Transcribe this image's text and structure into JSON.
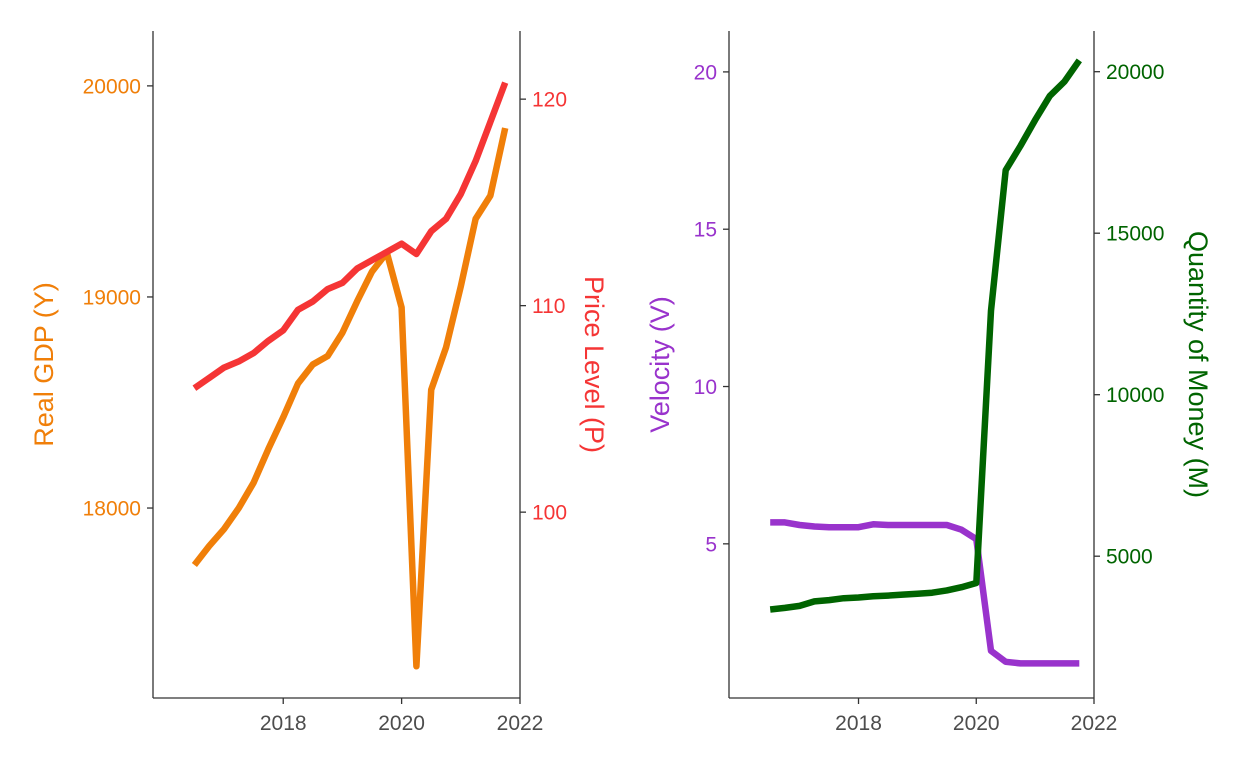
{
  "chart_data": [
    {
      "type": "line",
      "dual_axis": true,
      "grid": false,
      "legend": "none",
      "x": [
        2016.5,
        2016.75,
        2017.0,
        2017.25,
        2017.5,
        2017.75,
        2018.0,
        2018.25,
        2018.5,
        2018.75,
        2019.0,
        2019.25,
        2019.5,
        2019.75,
        2020.0,
        2020.25,
        2020.5,
        2020.75,
        2021.0,
        2021.25,
        2021.5,
        2021.75
      ],
      "xlim": [
        2015.8,
        2022.0
      ],
      "x_ticks": [
        "2018",
        "2020",
        "2022"
      ],
      "series": [
        {
          "axis": "left",
          "color": "#F07F09",
          "values": [
            17730,
            17820,
            17900,
            18000,
            18120,
            18280,
            18430,
            18590,
            18680,
            18720,
            18830,
            18980,
            19120,
            19210,
            18950,
            17250,
            18560,
            18760,
            19050,
            19370,
            19480,
            19800
          ]
        },
        {
          "axis": "right",
          "color": "#F53535",
          "values": [
            106.0,
            106.5,
            107.0,
            107.3,
            107.7,
            108.3,
            108.8,
            109.8,
            110.2,
            110.8,
            111.1,
            111.8,
            112.2,
            112.6,
            113.0,
            112.5,
            113.6,
            114.2,
            115.4,
            117.0,
            118.9,
            120.8
          ]
        }
      ],
      "left_axis": {
        "label": "Real GDP (Y)",
        "color": "#F07F09",
        "ylim": [
          17100,
          20260
        ],
        "ticks": [
          "18000",
          "19000",
          "20000"
        ]
      },
      "right_axis": {
        "label": "Price Level (P)",
        "color": "#F53535",
        "ylim": [
          91.0,
          123.3
        ],
        "ticks": [
          "100",
          "110",
          "120"
        ]
      }
    },
    {
      "type": "line",
      "dual_axis": true,
      "grid": false,
      "legend": "none",
      "x": [
        2016.5,
        2016.75,
        2017.0,
        2017.25,
        2017.5,
        2017.75,
        2018.0,
        2018.25,
        2018.5,
        2018.75,
        2019.0,
        2019.25,
        2019.5,
        2019.75,
        2020.0,
        2020.25,
        2020.5,
        2020.75,
        2021.0,
        2021.25,
        2021.5,
        2021.75
      ],
      "xlim": [
        2015.8,
        2022.0
      ],
      "x_ticks": [
        "2018",
        "2020",
        "2022"
      ],
      "series": [
        {
          "axis": "left",
          "color": "#9933CC",
          "values": [
            5.68,
            5.68,
            5.6,
            5.55,
            5.53,
            5.53,
            5.53,
            5.62,
            5.6,
            5.6,
            5.6,
            5.6,
            5.6,
            5.45,
            5.15,
            1.6,
            1.25,
            1.2,
            1.2,
            1.2,
            1.2,
            1.2
          ]
        },
        {
          "axis": "right",
          "color": "#006400",
          "values": [
            3350,
            3400,
            3460,
            3600,
            3640,
            3700,
            3720,
            3760,
            3780,
            3810,
            3840,
            3870,
            3940,
            4040,
            4170,
            12600,
            16950,
            17700,
            18500,
            19250,
            19700,
            20350
          ]
        }
      ],
      "left_axis": {
        "label": "Velocity (V)",
        "color": "#9933CC",
        "ylim": [
          0.1,
          21.3
        ],
        "ticks": [
          "5",
          "10",
          "15",
          "20"
        ]
      },
      "right_axis": {
        "label": "Quantity of Money (M)",
        "color": "#006400",
        "ylim": [
          610,
          21260
        ],
        "ticks": [
          "5000",
          "10000",
          "15000",
          "20000"
        ]
      }
    }
  ]
}
